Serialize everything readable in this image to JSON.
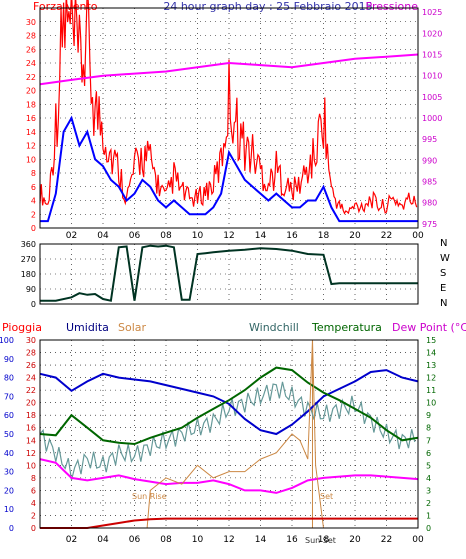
{
  "chart_data": [
    {
      "type": "line",
      "title": "24 hour graph day : 25 Febbraio 2015",
      "left_axis_label": "Forza vento",
      "right_axis_label": "Pressione",
      "x_ticks": [
        "02",
        "04",
        "06",
        "08",
        "10",
        "12",
        "14",
        "16",
        "18",
        "20",
        "22",
        "00"
      ],
      "y_left_ticks": [
        "0",
        "2",
        "4",
        "6",
        "8",
        "10",
        "12",
        "14",
        "16",
        "18",
        "20",
        "22",
        "24",
        "26",
        "28",
        "30"
      ],
      "y_left_range": [
        0,
        32
      ],
      "y_right_ticks": [
        "975",
        "980",
        "985",
        "990",
        "995",
        "1000",
        "1005",
        "1010",
        "1015",
        "1020",
        "1025"
      ],
      "y_right_range": [
        974,
        1026
      ],
      "grid": true,
      "series": [
        {
          "name": "Forza vento",
          "color": "#ff0000",
          "style": "gust",
          "x": [
            0,
            0.5,
            1,
            1.5,
            2,
            2.5,
            3,
            3.5,
            4,
            4.5,
            5,
            5.5,
            6,
            6.5,
            7,
            7.5,
            8,
            8.5,
            9,
            9.5,
            10,
            10.5,
            11,
            11.5,
            12,
            12.5,
            13,
            13.5,
            14,
            14.5,
            15,
            15.5,
            16,
            16.5,
            17,
            17.5,
            18,
            18.5,
            19,
            19.5,
            20,
            20.5,
            21,
            21.5,
            22,
            22.5,
            23,
            23.5,
            24
          ],
          "values": [
            5,
            3,
            14,
            28,
            26,
            22,
            25,
            16,
            14,
            10,
            8,
            4,
            8,
            10,
            9,
            6,
            4,
            7,
            5,
            4,
            4,
            5,
            6,
            9,
            18,
            14,
            11,
            10,
            8,
            6,
            8,
            6,
            5,
            6,
            8,
            10,
            16,
            5,
            3,
            2,
            3,
            3,
            4,
            3,
            3,
            4,
            3,
            4,
            3
          ]
        },
        {
          "name": "Forza vento",
          "color": "#0000ff",
          "x": [
            0,
            0.5,
            1,
            1.5,
            2,
            2.5,
            3,
            3.5,
            4,
            4.5,
            5,
            5.5,
            6,
            6.5,
            7,
            7.5,
            8,
            8.5,
            9,
            9.5,
            10,
            10.5,
            11,
            11.5,
            12,
            12.5,
            13,
            13.5,
            14,
            14.5,
            15,
            15.5,
            16,
            16.5,
            17,
            17.5,
            18,
            18.5,
            19,
            19.5,
            20,
            20.5,
            21,
            21.5,
            22,
            22.5,
            23,
            23.5,
            24
          ],
          "values": [
            1,
            1,
            5,
            14,
            16,
            12,
            14,
            10,
            9,
            7,
            6,
            4,
            5,
            7,
            6,
            4,
            3,
            4,
            3,
            2,
            2,
            2,
            3,
            5,
            11,
            9,
            7,
            6,
            5,
            4,
            5,
            4,
            3,
            3,
            4,
            4,
            6,
            3,
            1,
            1,
            1,
            1,
            1,
            1,
            1,
            1,
            1,
            1,
            1
          ]
        },
        {
          "name": "Pressione",
          "color": "#ff00ff",
          "axis": "right",
          "x": [
            0,
            2,
            4,
            6,
            8,
            10,
            12,
            14,
            16,
            18,
            20,
            22,
            24
          ],
          "values": [
            1008,
            1009,
            1010,
            1010.5,
            1011,
            1012,
            1013,
            1012.5,
            1012,
            1013,
            1014,
            1014.5,
            1015
          ]
        }
      ]
    },
    {
      "type": "line",
      "title": "",
      "y_left_ticks": [
        "0",
        "90",
        "180",
        "270",
        "360"
      ],
      "y_left_range": [
        0,
        360
      ],
      "compass_labels": [
        "N",
        "W",
        "S",
        "E",
        "N"
      ],
      "grid": true,
      "series": [
        {
          "name": "Direzione vento",
          "color": "#003322",
          "x": [
            0,
            1,
            2,
            2.5,
            3,
            3.5,
            4,
            4.5,
            5,
            5.5,
            6,
            6.5,
            7,
            7.5,
            8,
            8.5,
            9,
            9.5,
            10,
            10.5,
            11,
            12,
            13,
            14,
            15,
            16,
            17,
            18,
            18.5,
            19,
            20,
            21,
            22,
            23,
            24
          ],
          "values": [
            20,
            20,
            40,
            65,
            55,
            60,
            30,
            20,
            340,
            345,
            20,
            340,
            350,
            345,
            350,
            340,
            25,
            25,
            300,
            305,
            310,
            320,
            325,
            335,
            330,
            320,
            300,
            295,
            120,
            125,
            125,
            125,
            125,
            125,
            125
          ]
        }
      ]
    },
    {
      "type": "line",
      "title": "",
      "legend": [
        "Pioggia",
        "Umidita",
        "Solar",
        "Windchill",
        "Temperatura",
        "Dew Point (°C)"
      ],
      "x_ticks": [
        "02",
        "04",
        "06",
        "08",
        "10",
        "12",
        "14",
        "16",
        "18",
        "20",
        "22",
        "00"
      ],
      "y_left_outer_ticks": [
        "0",
        "10",
        "20",
        "30",
        "40",
        "50",
        "60",
        "70",
        "80",
        "90",
        "100"
      ],
      "y_left_inner_ticks": [
        "0",
        "2",
        "4",
        "6",
        "8",
        "10",
        "12",
        "14",
        "16",
        "18",
        "20",
        "22",
        "24",
        "26",
        "28",
        "30"
      ],
      "y_right_ticks": [
        "0",
        "1",
        "2",
        "3",
        "4",
        "5",
        "6",
        "7",
        "8",
        "9",
        "10",
        "11",
        "12",
        "13",
        "14",
        "15"
      ],
      "annotations": [
        "Sun Rise",
        "Sun Set",
        "Set"
      ],
      "grid": true,
      "series": [
        {
          "name": "Umidita",
          "color": "#0000cc",
          "x": [
            0,
            1,
            2,
            3,
            4,
            5,
            6,
            7,
            8,
            9,
            10,
            11,
            12,
            13,
            14,
            15,
            16,
            17,
            18,
            19,
            20,
            21,
            22,
            23,
            24
          ],
          "values": [
            82,
            80,
            73,
            78,
            82,
            80,
            79,
            78,
            76,
            74,
            72,
            70,
            66,
            58,
            52,
            50,
            55,
            62,
            70,
            74,
            78,
            83,
            84,
            80,
            78
          ]
        },
        {
          "name": "Temperatura",
          "color": "#006600",
          "x": [
            0,
            1,
            2,
            3,
            4,
            5,
            6,
            7,
            8,
            9,
            10,
            11,
            12,
            13,
            14,
            15,
            16,
            17,
            18,
            19,
            20,
            21,
            22,
            23,
            24
          ],
          "values": [
            7.5,
            7.4,
            9,
            8,
            7,
            6.8,
            6.7,
            7.2,
            7.6,
            8,
            8.8,
            9.5,
            10.2,
            11,
            12,
            12.8,
            12.6,
            11.6,
            10.8,
            10.2,
            9.5,
            8.8,
            7.8,
            7,
            7.2
          ]
        },
        {
          "name": "Windchill",
          "color": "#669999",
          "x": [
            0,
            1,
            2,
            3,
            4,
            5,
            6,
            7,
            8,
            9,
            10,
            11,
            12,
            13,
            14,
            15,
            16,
            17,
            18,
            19,
            20,
            21,
            22,
            23,
            24
          ],
          "values": [
            7.5,
            6,
            4.5,
            5.5,
            5,
            6,
            5.8,
            6.5,
            7,
            7.5,
            8,
            8.5,
            9.5,
            10,
            10.5,
            11.2,
            10.5,
            9.5,
            9,
            9.5,
            9.8,
            8.6,
            7.5,
            7,
            7.2
          ]
        },
        {
          "name": "Dew Point (°C)",
          "color": "#ff00ff",
          "x": [
            0,
            1,
            2,
            3,
            4,
            5,
            6,
            7,
            8,
            9,
            10,
            11,
            12,
            13,
            14,
            15,
            16,
            17,
            18,
            19,
            20,
            21,
            22,
            23,
            24
          ],
          "values": [
            5.5,
            5.2,
            4,
            3.8,
            4,
            4.2,
            3.9,
            3.7,
            3.5,
            3.6,
            3.6,
            3.8,
            3.5,
            3,
            3,
            2.8,
            3.2,
            3.8,
            4,
            4.1,
            4.2,
            4.2,
            4.1,
            4,
            3.9
          ]
        },
        {
          "name": "Solar",
          "color": "#cc8844",
          "x": [
            0,
            6.8,
            7,
            7.5,
            8,
            9,
            10,
            11,
            12,
            13,
            14,
            15,
            16,
            16.5,
            17,
            17.3,
            17.5,
            18,
            24
          ],
          "values": [
            0,
            0,
            6,
            7,
            8,
            7,
            10,
            8,
            9,
            9,
            11,
            12,
            15,
            14,
            11,
            30,
            10,
            0,
            0
          ]
        },
        {
          "name": "Pioggia",
          "color": "#cc0000",
          "x": [
            0,
            3,
            4,
            5,
            6,
            7,
            8,
            24
          ],
          "values": [
            0,
            0,
            0.4,
            0.8,
            1.2,
            1.4,
            1.5,
            1.5
          ]
        }
      ]
    }
  ]
}
